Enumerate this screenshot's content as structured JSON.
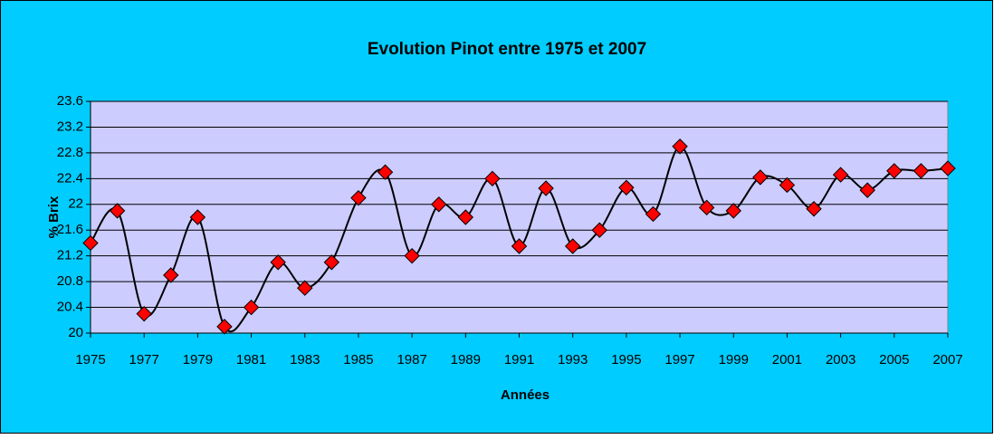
{
  "chart_data": {
    "type": "line",
    "title": "Evolution Pinot entre 1975 et 2007",
    "x_label": "Années",
    "y_label": "% Brix",
    "x": [
      1975,
      1976,
      1977,
      1978,
      1979,
      1980,
      1981,
      1982,
      1983,
      1984,
      1985,
      1986,
      1987,
      1988,
      1989,
      1990,
      1991,
      1992,
      1993,
      1994,
      1995,
      1996,
      1997,
      1998,
      1999,
      2000,
      2001,
      2002,
      2003,
      2004,
      2005,
      2006,
      2007
    ],
    "values": [
      21.4,
      21.9,
      20.3,
      20.9,
      21.8,
      20.1,
      20.4,
      21.1,
      20.7,
      21.1,
      22.1,
      22.5,
      21.2,
      22.0,
      21.8,
      22.4,
      21.35,
      22.25,
      21.35,
      21.6,
      22.26,
      21.85,
      22.9,
      21.95,
      21.9,
      22.42,
      22.3,
      21.93,
      22.46,
      22.22,
      22.52,
      22.52,
      22.56
    ],
    "color": "#000000",
    "marker_color": "#ff0000",
    "smooth": true,
    "xlim": [
      1975,
      2007
    ],
    "xticks": [
      1975,
      1977,
      1979,
      1981,
      1983,
      1985,
      1987,
      1989,
      1991,
      1993,
      1995,
      1997,
      1999,
      2001,
      2003,
      2005,
      2007
    ],
    "ylim": [
      20,
      23.6
    ],
    "yticks": [
      20,
      20.4,
      20.8,
      21.2,
      21.6,
      22,
      22.4,
      22.8,
      23.2,
      23.6
    ],
    "grid": true
  }
}
